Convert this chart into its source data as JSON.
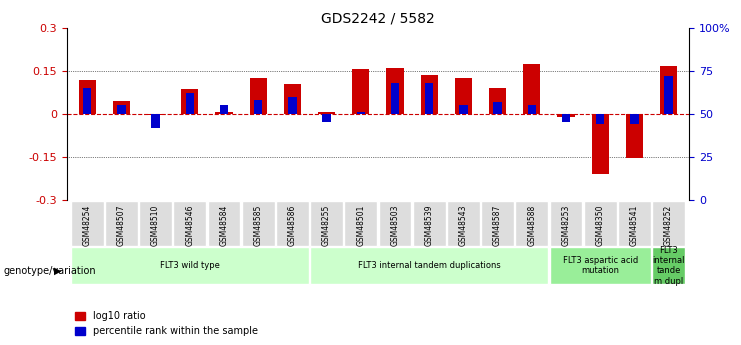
{
  "title": "GDS2242 / 5582",
  "samples": [
    "GSM48254",
    "GSM48507",
    "GSM48510",
    "GSM48546",
    "GSM48584",
    "GSM48585",
    "GSM48586",
    "GSM48255",
    "GSM48501",
    "GSM48503",
    "GSM48539",
    "GSM48543",
    "GSM48587",
    "GSM48588",
    "GSM48253",
    "GSM48350",
    "GSM48541",
    "GSM48252"
  ],
  "log10_ratio": [
    0.118,
    0.045,
    -0.005,
    0.085,
    0.005,
    0.125,
    0.105,
    0.005,
    0.155,
    0.16,
    0.135,
    0.125,
    0.09,
    0.175,
    -0.01,
    -0.21,
    -0.155,
    0.165
  ],
  "percentile_rank_raw": [
    65,
    55,
    42,
    62,
    55,
    58,
    60,
    45,
    51,
    68,
    68,
    55,
    57,
    55,
    45,
    44,
    44,
    72
  ],
  "ylim": [
    -0.3,
    0.3
  ],
  "y2lim": [
    0,
    100
  ],
  "yticks": [
    -0.3,
    -0.15,
    0,
    0.15,
    0.3
  ],
  "ytick_labels": [
    "-0.3",
    "-0.15",
    "0",
    "0.15",
    "0.3"
  ],
  "y2ticks": [
    0,
    25,
    50,
    75,
    100
  ],
  "y2tick_labels": [
    "0",
    "25",
    "50",
    "75",
    "100%"
  ],
  "red_color": "#cc0000",
  "blue_color": "#0000cc",
  "group_labels": [
    "FLT3 wild type",
    "FLT3 internal tandem duplications",
    "FLT3 aspartic acid\nmutation",
    "FLT3\ninternal\ntande\nm dupl"
  ],
  "group_ranges": [
    [
      0,
      6
    ],
    [
      7,
      13
    ],
    [
      14,
      16
    ],
    [
      17,
      17
    ]
  ],
  "group_colors": [
    "#ccffcc",
    "#ccffcc",
    "#99ee99",
    "#66cc66"
  ],
  "legend_red": "log10 ratio",
  "legend_blue": "percentile rank within the sample",
  "xlabel_label": "genotype/variation",
  "tick_color_left": "#cc0000",
  "tick_color_right": "#0000cc",
  "sample_box_color": "#dddddd"
}
